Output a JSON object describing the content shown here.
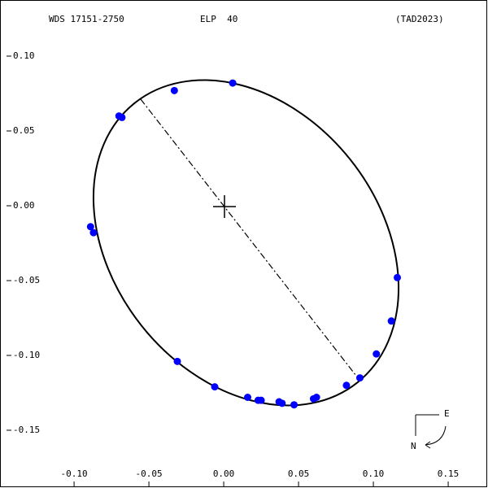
{
  "chart_data": {
    "type": "scatter",
    "title": "WDS 17151-2750",
    "subtitle": "ELP  40",
    "annotations": [
      "(TAD2023)",
      "E",
      "N"
    ],
    "color": "#0000ff",
    "x": [
      0.006,
      -0.033,
      -0.07,
      -0.068,
      -0.089,
      -0.087,
      0.116,
      0.112,
      0.102,
      0.091,
      0.082,
      0.062,
      0.06,
      0.047,
      0.039,
      0.037,
      0.025,
      0.023,
      0.016,
      -0.006,
      -0.031
    ],
    "y": [
      0.082,
      0.077,
      0.06,
      0.059,
      -0.014,
      -0.018,
      -0.048,
      -0.077,
      -0.099,
      -0.115,
      -0.12,
      -0.128,
      -0.129,
      -0.133,
      -0.132,
      -0.131,
      -0.13,
      -0.13,
      -0.128,
      -0.121,
      -0.104
    ],
    "xlim": [
      -0.1495,
      0.1766
    ],
    "ylim": [
      -0.1886,
      0.1375
    ],
    "xticks": [
      {
        "value": -0.1,
        "label": "-0.10"
      },
      -0.05,
      {
        "value": 0,
        "label": "0.00"
      },
      0.05,
      {
        "value": 0.1,
        "label": "0.10"
      },
      0.15
    ],
    "yticks": [
      {
        "value": 0.1,
        "label": "0.10"
      },
      0.05,
      {
        "value": 0,
        "label": "0.00"
      },
      -0.05,
      {
        "value": -0.1,
        "label": "-0.10"
      },
      -0.15
    ]
  }
}
